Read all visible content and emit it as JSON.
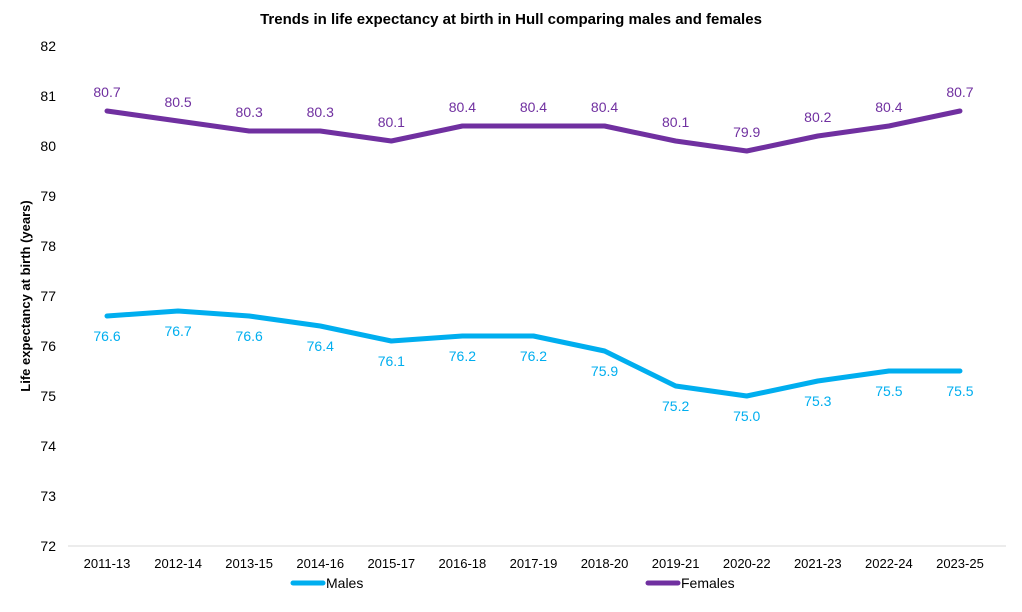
{
  "chart_data": {
    "type": "line",
    "title": "Trends in life expectancy at birth in Hull comparing males and females",
    "xlabel": "",
    "ylabel": "Life expectancy at birth (years)",
    "ylim": [
      72,
      82
    ],
    "yticks": [
      "72",
      "73",
      "74",
      "75",
      "76",
      "77",
      "78",
      "79",
      "80",
      "81",
      "82"
    ],
    "grid": false,
    "legend_position": "bottom",
    "categories": [
      "2011-13",
      "2012-14",
      "2013-15",
      "2014-16",
      "2015-17",
      "2016-18",
      "2017-19",
      "2018-20",
      "2019-21",
      "2020-22",
      "2021-23",
      "2022-24",
      "2023-25"
    ],
    "series": [
      {
        "name": "Males",
        "color": "#00AEEF",
        "label_position": "below",
        "values": [
          76.6,
          76.7,
          76.6,
          76.4,
          76.1,
          76.2,
          76.2,
          75.9,
          75.2,
          75.0,
          75.3,
          75.5,
          75.5
        ],
        "labels": [
          "76.6",
          "76.7",
          "76.6",
          "76.4",
          "76.1",
          "76.2",
          "76.2",
          "75.9",
          "75.2",
          "75.0",
          "75.3",
          "75.5",
          "75.5"
        ]
      },
      {
        "name": "Females",
        "color": "#7030A0",
        "label_position": "above",
        "values": [
          80.7,
          80.5,
          80.3,
          80.3,
          80.1,
          80.4,
          80.4,
          80.4,
          80.1,
          79.9,
          80.2,
          80.4,
          80.7
        ],
        "labels": [
          "80.7",
          "80.5",
          "80.3",
          "80.3",
          "80.1",
          "80.4",
          "80.4",
          "80.4",
          "80.1",
          "79.9",
          "80.2",
          "80.4",
          "80.7"
        ]
      }
    ]
  }
}
